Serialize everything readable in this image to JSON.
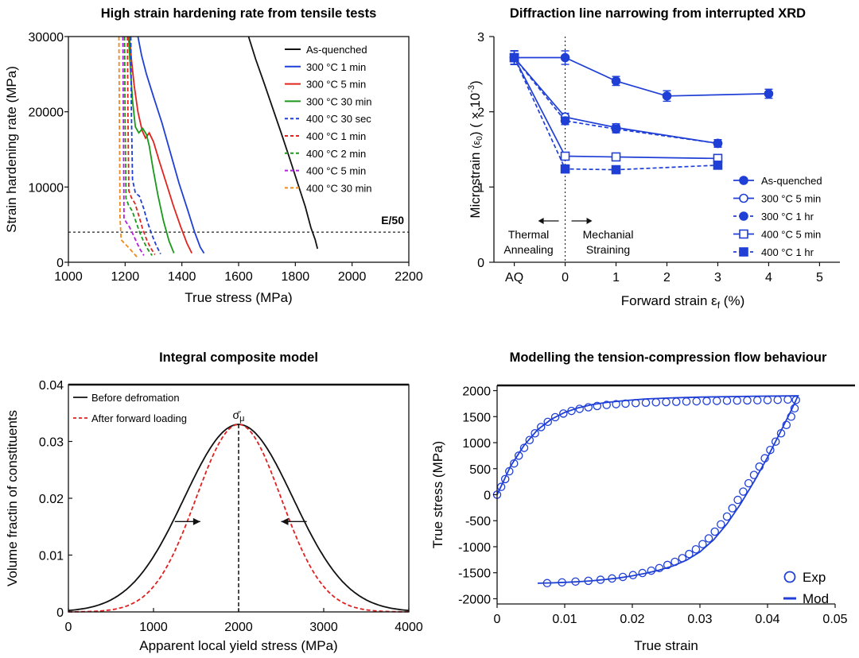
{
  "colors": {
    "blue": "#1f3fd6",
    "red": "#e0241e",
    "green": "#1a9a1a",
    "purple": "#b520e0",
    "orange": "#f08a1a",
    "black": "#111111",
    "red_dash": "#e02020"
  },
  "chart_data": [
    {
      "type": "line",
      "title": "High strain hardening rate from tensile tests",
      "xlabel": "True stress (MPa)",
      "ylabel": "Strain hardening rate (MPa)",
      "xlim": [
        1000,
        2200
      ],
      "ylim": [
        0,
        30000
      ],
      "xticks": [
        1000,
        1200,
        1400,
        1600,
        1800,
        2000,
        2200
      ],
      "yticks": [
        0,
        10000,
        20000,
        30000
      ],
      "reference_line": {
        "y": 4000,
        "label": "E/50"
      },
      "legend_position": "top-right",
      "series": [
        {
          "name": "As-quenched",
          "color": "black",
          "dash": false,
          "x": [
            1635,
            1660,
            1690,
            1720,
            1750,
            1780,
            1810,
            1835,
            1855,
            1870,
            1878
          ],
          "y": [
            30000,
            27000,
            23800,
            20500,
            17200,
            13800,
            10300,
            7400,
            4600,
            3000,
            1800
          ]
        },
        {
          "name": "300 °C 1 min",
          "color": "blue",
          "dash": false,
          "x": [
            1245,
            1258,
            1275,
            1300,
            1330,
            1360,
            1390,
            1420,
            1445,
            1465,
            1478
          ],
          "y": [
            30000,
            27500,
            25000,
            22000,
            18500,
            14500,
            10500,
            7000,
            4000,
            2000,
            1200
          ]
        },
        {
          "name": "300 °C 5 min",
          "color": "red",
          "dash": false,
          "x": [
            1215,
            1222,
            1232,
            1245,
            1260,
            1272,
            1285,
            1300,
            1320,
            1345,
            1370,
            1395,
            1418,
            1435
          ],
          "y": [
            30000,
            27000,
            23500,
            20000,
            17500,
            16500,
            17200,
            16000,
            13500,
            10500,
            7500,
            4800,
            2500,
            1200
          ]
        },
        {
          "name": "300 °C 30 min",
          "color": "green",
          "dash": false,
          "x": [
            1212,
            1218,
            1226,
            1236,
            1248,
            1262,
            1275,
            1285,
            1298,
            1315,
            1335,
            1355,
            1372
          ],
          "y": [
            30000,
            26000,
            21500,
            18000,
            17200,
            17800,
            17000,
            15500,
            12500,
            9000,
            5500,
            2800,
            1200
          ]
        },
        {
          "name": "400 °C 30 sec",
          "color": "blue",
          "dash": true,
          "x": [
            1220,
            1222,
            1226,
            1236,
            1250,
            1265,
            1280,
            1295,
            1310,
            1325
          ],
          "y": [
            30000,
            20000,
            11000,
            9200,
            8800,
            7200,
            5200,
            3600,
            2200,
            1100
          ]
        },
        {
          "name": "400 °C 1 min",
          "color": "red",
          "dash": true,
          "x": [
            1208,
            1210,
            1213,
            1222,
            1235,
            1248,
            1262,
            1276,
            1290,
            1305
          ],
          "y": [
            30000,
            19000,
            9500,
            8600,
            7800,
            6200,
            4400,
            3000,
            1900,
            1000
          ]
        },
        {
          "name": "400 °C 2 min",
          "color": "green",
          "dash": true,
          "x": [
            1198,
            1200,
            1203,
            1212,
            1225,
            1238,
            1252,
            1266,
            1280,
            1295
          ],
          "y": [
            30000,
            19000,
            8500,
            7600,
            6800,
            5400,
            3900,
            2700,
            1700,
            900
          ]
        },
        {
          "name": "400 °C 5 min",
          "color": "purple",
          "dash": true,
          "x": [
            1192,
            1194,
            1196,
            1204,
            1215,
            1228,
            1240,
            1253,
            1266
          ],
          "y": [
            30000,
            18000,
            5800,
            5300,
            4700,
            3700,
            2700,
            1700,
            900
          ]
        },
        {
          "name": "400 °C 30 min",
          "color": "orange",
          "dash": true,
          "x": [
            1178,
            1180,
            1182,
            1186,
            1195,
            1206,
            1218,
            1230,
            1242
          ],
          "y": [
            30000,
            18000,
            6000,
            3000,
            2600,
            2200,
            1700,
            1200,
            700
          ]
        }
      ]
    },
    {
      "type": "line",
      "title": "Diffraction line narrowing from interrupted XRD",
      "xlabel": "Forward strain ε",
      "xlabel_sub": "f",
      "xlabel_suffix": " (%)",
      "ylabel": "Microstrain",
      "ylabel_symbol": "(ε",
      "ylabel_sub": "0",
      "ylabel_rest": ") ( × 10",
      "ylabel_sup": "-3",
      "ylabel_end": ")",
      "xlim": [
        -1.4,
        5.4
      ],
      "ylim": [
        0,
        3
      ],
      "xticks": [
        -1,
        0,
        1,
        2,
        3,
        4,
        5
      ],
      "xtick_labels": [
        "AQ",
        "0",
        "1",
        "2",
        "3",
        "4",
        "5"
      ],
      "yticks": [
        0,
        1,
        2,
        3
      ],
      "divider_x": 0,
      "annotations": {
        "left": [
          "Thermal",
          "Annealing"
        ],
        "right": [
          "Mechanial",
          "Straining"
        ]
      },
      "legend_position": "bottom-right",
      "series": [
        {
          "name": "As-quenched",
          "marker": "circle",
          "filled": true,
          "dash": false,
          "x": [
            -1,
            0,
            1,
            2,
            4
          ],
          "y": [
            2.72,
            2.72,
            2.41,
            2.21,
            2.24
          ],
          "err": [
            0.09,
            0.09,
            0.06,
            0.07,
            0.06
          ]
        },
        {
          "name": "300 °C 5 min",
          "marker": "circle",
          "filled": false,
          "dash": false,
          "x": [
            -1,
            0,
            1,
            3
          ],
          "y": [
            2.72,
            1.93,
            1.79,
            1.58
          ],
          "err": [
            0.09,
            0.05,
            0.05,
            0.05
          ]
        },
        {
          "name": "300 °C 1 hr",
          "marker": "circle",
          "filled": true,
          "dash": true,
          "x": [
            -1,
            0,
            1,
            3
          ],
          "y": [
            2.72,
            1.88,
            1.77,
            1.58
          ],
          "err": [
            0.09,
            0.05,
            0.05,
            0.05
          ]
        },
        {
          "name": "400 °C 5 min",
          "marker": "square",
          "filled": false,
          "dash": false,
          "x": [
            -1,
            0,
            1,
            3
          ],
          "y": [
            2.72,
            1.41,
            1.4,
            1.38
          ],
          "err": [
            0.09,
            0.05,
            0.04,
            0.04
          ]
        },
        {
          "name": "400 °C 1 hr",
          "marker": "square",
          "filled": true,
          "dash": true,
          "x": [
            -1,
            0,
            1,
            3
          ],
          "y": [
            2.72,
            1.24,
            1.23,
            1.29
          ],
          "err": [
            0.09,
            0.05,
            0.04,
            0.04
          ]
        }
      ]
    },
    {
      "type": "line",
      "title": "Integral composite model",
      "xlabel": "Apparent local yield stress (MPa)",
      "ylabel": "Volume fractin of constituents",
      "xlim": [
        0,
        4000
      ],
      "ylim": [
        0,
        0.04
      ],
      "xticks": [
        0,
        1000,
        2000,
        3000,
        4000
      ],
      "yticks": [
        0,
        0.01,
        0.02,
        0.03,
        0.04
      ],
      "ytick_labels": [
        "0",
        "0.01",
        "0.02",
        "0.03",
        "0.04"
      ],
      "peak_label": "σ̄",
      "peak_label_sub": "μ",
      "peak_x": 2000,
      "legend_position": "top-left",
      "series": [
        {
          "name": "Before defromation",
          "color": "black",
          "dash": false,
          "mean": 2000,
          "sigma": 640,
          "peak": 0.033
        },
        {
          "name": "After forward loading",
          "color": "red_dash",
          "dash": true,
          "mean": 2000,
          "sigma": 500,
          "peak": 0.033
        }
      ],
      "arrows": [
        {
          "x_from": 1250,
          "x_to": 1550,
          "y": 0.0159
        },
        {
          "x_from": 2800,
          "x_to": 2500,
          "y": 0.0159
        }
      ]
    },
    {
      "type": "scatter",
      "title": "Modelling the tension-compression flow behaviour",
      "xlabel": "True strain",
      "ylabel": "True stress (MPa)",
      "xlim": [
        0,
        0.05
      ],
      "ylim": [
        -2000,
        2000
      ],
      "xticks": [
        0,
        0.01,
        0.02,
        0.03,
        0.04,
        0.05
      ],
      "xtick_labels": [
        "0",
        "0.01",
        "0.02",
        "0.03",
        "0.04",
        "0.05"
      ],
      "yticks": [
        -2000,
        -1500,
        -1000,
        -500,
        0,
        500,
        1000,
        1500,
        2000
      ],
      "legend_position": "bottom-right",
      "series": [
        {
          "name": "Exp",
          "marker": "circle-open",
          "x": [
            0.0,
            0.0006,
            0.0012,
            0.0018,
            0.0025,
            0.0032,
            0.004,
            0.0048,
            0.0056,
            0.0065,
            0.0075,
            0.0086,
            0.0098,
            0.011,
            0.0122,
            0.0135,
            0.0148,
            0.0162,
            0.0176,
            0.019,
            0.0205,
            0.022,
            0.0235,
            0.025,
            0.0265,
            0.028,
            0.0295,
            0.031,
            0.0325,
            0.034,
            0.0355,
            0.037,
            0.0385,
            0.04,
            0.0415,
            0.043,
            0.0442,
            0.044,
            0.0435,
            0.0428,
            0.042,
            0.0412,
            0.0404,
            0.0396,
            0.0388,
            0.038,
            0.0372,
            0.0364,
            0.0356,
            0.0348,
            0.034,
            0.0331,
            0.0322,
            0.0313,
            0.0304,
            0.0294,
            0.0284,
            0.0274,
            0.0263,
            0.0252,
            0.024,
            0.0228,
            0.0215,
            0.0201,
            0.0186,
            0.017,
            0.0153,
            0.0135,
            0.0116,
            0.0096,
            0.0074
          ],
          "y": [
            0,
            150,
            300,
            450,
            600,
            750,
            900,
            1050,
            1180,
            1300,
            1400,
            1490,
            1560,
            1610,
            1650,
            1680,
            1705,
            1725,
            1740,
            1750,
            1760,
            1768,
            1775,
            1780,
            1785,
            1790,
            1795,
            1800,
            1803,
            1806,
            1809,
            1812,
            1815,
            1818,
            1822,
            1828,
            1820,
            1660,
            1500,
            1340,
            1180,
            1020,
            860,
            700,
            540,
            380,
            220,
            60,
            -100,
            -260,
            -420,
            -570,
            -710,
            -840,
            -950,
            -1050,
            -1140,
            -1220,
            -1290,
            -1350,
            -1410,
            -1460,
            -1505,
            -1545,
            -1580,
            -1610,
            -1635,
            -1655,
            -1670,
            -1685,
            -1700
          ]
        },
        {
          "name": "Mod",
          "marker": "line",
          "x": [
            0.0,
            0.002,
            0.004,
            0.006,
            0.008,
            0.01,
            0.012,
            0.014,
            0.016,
            0.019,
            0.022,
            0.026,
            0.03,
            0.034,
            0.038,
            0.042,
            0.0445,
            0.0435,
            0.042,
            0.04,
            0.038,
            0.036,
            0.034,
            0.032,
            0.03,
            0.028,
            0.026,
            0.024,
            0.022,
            0.02,
            0.018,
            0.016,
            0.014,
            0.012,
            0.01,
            0.008,
            0.006
          ],
          "y": [
            0,
            550,
            950,
            1250,
            1450,
            1580,
            1670,
            1730,
            1770,
            1810,
            1840,
            1862,
            1875,
            1885,
            1892,
            1897,
            1900,
            1620,
            1230,
            720,
            250,
            -180,
            -560,
            -870,
            -1100,
            -1260,
            -1370,
            -1450,
            -1510,
            -1560,
            -1600,
            -1630,
            -1655,
            -1672,
            -1685,
            -1695,
            -1702
          ]
        }
      ]
    }
  ]
}
